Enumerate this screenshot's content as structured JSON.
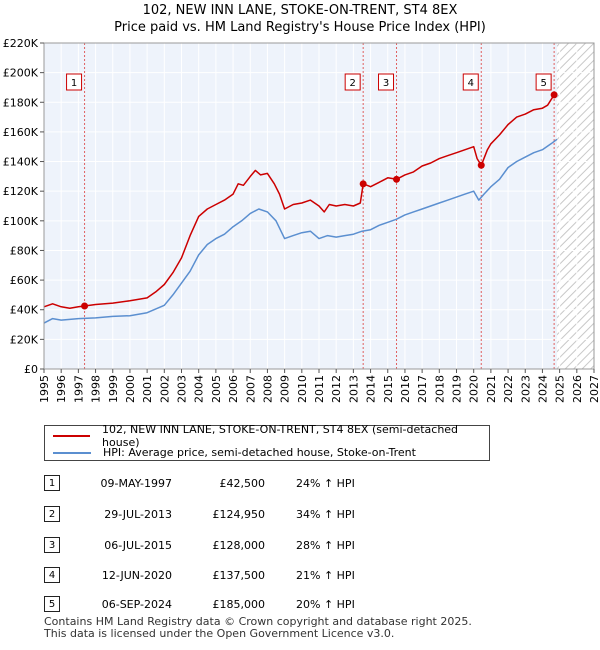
{
  "title_line1": "102, NEW INN LANE, STOKE-ON-TRENT, ST4 8EX",
  "title_line2": "Price paid vs. HM Land Registry's House Price Index (HPI)",
  "chart_data": {
    "type": "line",
    "title": "102, NEW INN LANE, STOKE-ON-TRENT, ST4 8EX — Price paid vs. HM Land Registry's House Price Index (HPI)",
    "xlim": [
      1995,
      2027
    ],
    "ylim": [
      0,
      220000
    ],
    "xticks": [
      1995,
      1996,
      1997,
      1998,
      1999,
      2000,
      2001,
      2002,
      2003,
      2004,
      2005,
      2006,
      2007,
      2008,
      2009,
      2010,
      2011,
      2012,
      2013,
      2014,
      2015,
      2016,
      2017,
      2018,
      2019,
      2020,
      2021,
      2022,
      2023,
      2024,
      2025,
      2026,
      2027
    ],
    "yticks": [
      {
        "value": 0,
        "label": "£0"
      },
      {
        "value": 20000,
        "label": "£20K"
      },
      {
        "value": 40000,
        "label": "£40K"
      },
      {
        "value": 60000,
        "label": "£60K"
      },
      {
        "value": 80000,
        "label": "£80K"
      },
      {
        "value": 100000,
        "label": "£100K"
      },
      {
        "value": 120000,
        "label": "£120K"
      },
      {
        "value": 140000,
        "label": "£140K"
      },
      {
        "value": 160000,
        "label": "£160K"
      },
      {
        "value": 180000,
        "label": "£180K"
      },
      {
        "value": 200000,
        "label": "£200K"
      },
      {
        "value": 220000,
        "label": "£220K"
      }
    ],
    "forecast_start": 2024.85,
    "series": [
      {
        "name": "102, NEW INN LANE, STOKE-ON-TRENT, ST4 8EX (semi-detached house)",
        "color": "#cc0000",
        "points": [
          [
            1995.0,
            42000
          ],
          [
            1995.5,
            44000
          ],
          [
            1996.0,
            42000
          ],
          [
            1996.5,
            41000
          ],
          [
            1997.0,
            42000
          ],
          [
            1997.36,
            42500
          ],
          [
            1998.0,
            43500
          ],
          [
            1999.0,
            44500
          ],
          [
            2000.0,
            46000
          ],
          [
            2001.0,
            48000
          ],
          [
            2001.5,
            52000
          ],
          [
            2002.0,
            57000
          ],
          [
            2002.5,
            65000
          ],
          [
            2003.0,
            75000
          ],
          [
            2003.5,
            90000
          ],
          [
            2004.0,
            103000
          ],
          [
            2004.5,
            108000
          ],
          [
            2005.0,
            111000
          ],
          [
            2005.5,
            114000
          ],
          [
            2006.0,
            118000
          ],
          [
            2006.3,
            125000
          ],
          [
            2006.6,
            124000
          ],
          [
            2007.0,
            130000
          ],
          [
            2007.3,
            134000
          ],
          [
            2007.6,
            131000
          ],
          [
            2008.0,
            132000
          ],
          [
            2008.4,
            125000
          ],
          [
            2008.7,
            118000
          ],
          [
            2009.0,
            108000
          ],
          [
            2009.5,
            111000
          ],
          [
            2010.0,
            112000
          ],
          [
            2010.5,
            114000
          ],
          [
            2011.0,
            110000
          ],
          [
            2011.3,
            106000
          ],
          [
            2011.6,
            111000
          ],
          [
            2012.0,
            110000
          ],
          [
            2012.5,
            111000
          ],
          [
            2013.0,
            110000
          ],
          [
            2013.4,
            112000
          ],
          [
            2013.57,
            124950
          ],
          [
            2014.0,
            123000
          ],
          [
            2014.5,
            126000
          ],
          [
            2015.0,
            129000
          ],
          [
            2015.51,
            128000
          ],
          [
            2016.0,
            131000
          ],
          [
            2016.5,
            133000
          ],
          [
            2017.0,
            137000
          ],
          [
            2017.5,
            139000
          ],
          [
            2018.0,
            142000
          ],
          [
            2018.5,
            144000
          ],
          [
            2019.0,
            146000
          ],
          [
            2019.5,
            148000
          ],
          [
            2020.0,
            150000
          ],
          [
            2020.2,
            142000
          ],
          [
            2020.44,
            137500
          ],
          [
            2020.8,
            148000
          ],
          [
            2021.0,
            152000
          ],
          [
            2021.5,
            158000
          ],
          [
            2022.0,
            165000
          ],
          [
            2022.5,
            170000
          ],
          [
            2023.0,
            172000
          ],
          [
            2023.5,
            175000
          ],
          [
            2024.0,
            176000
          ],
          [
            2024.3,
            178000
          ],
          [
            2024.68,
            185000
          ],
          [
            2024.85,
            186000
          ]
        ]
      },
      {
        "name": "HPI: Average price, semi-detached house, Stoke-on-Trent",
        "color": "#5b8fd0",
        "points": [
          [
            1995.0,
            31000
          ],
          [
            1995.5,
            34000
          ],
          [
            1996.0,
            33000
          ],
          [
            1997.0,
            34000
          ],
          [
            1998.0,
            34500
          ],
          [
            1999.0,
            35500
          ],
          [
            2000.0,
            36000
          ],
          [
            2001.0,
            38000
          ],
          [
            2002.0,
            43000
          ],
          [
            2002.5,
            50000
          ],
          [
            2003.0,
            58000
          ],
          [
            2003.5,
            66000
          ],
          [
            2004.0,
            77000
          ],
          [
            2004.5,
            84000
          ],
          [
            2005.0,
            88000
          ],
          [
            2005.5,
            91000
          ],
          [
            2006.0,
            96000
          ],
          [
            2006.5,
            100000
          ],
          [
            2007.0,
            105000
          ],
          [
            2007.5,
            108000
          ],
          [
            2008.0,
            106000
          ],
          [
            2008.5,
            100000
          ],
          [
            2009.0,
            88000
          ],
          [
            2009.5,
            90000
          ],
          [
            2010.0,
            92000
          ],
          [
            2010.5,
            93000
          ],
          [
            2011.0,
            88000
          ],
          [
            2011.5,
            90000
          ],
          [
            2012.0,
            89000
          ],
          [
            2012.5,
            90000
          ],
          [
            2013.0,
            91000
          ],
          [
            2013.5,
            93000
          ],
          [
            2014.0,
            94000
          ],
          [
            2014.5,
            97000
          ],
          [
            2015.0,
            99000
          ],
          [
            2015.5,
            101000
          ],
          [
            2016.0,
            104000
          ],
          [
            2016.5,
            106000
          ],
          [
            2017.0,
            108000
          ],
          [
            2017.5,
            110000
          ],
          [
            2018.0,
            112000
          ],
          [
            2018.5,
            114000
          ],
          [
            2019.0,
            116000
          ],
          [
            2019.5,
            118000
          ],
          [
            2020.0,
            120000
          ],
          [
            2020.3,
            114000
          ],
          [
            2020.6,
            118000
          ],
          [
            2021.0,
            123000
          ],
          [
            2021.5,
            128000
          ],
          [
            2022.0,
            136000
          ],
          [
            2022.5,
            140000
          ],
          [
            2023.0,
            143000
          ],
          [
            2023.5,
            146000
          ],
          [
            2024.0,
            148000
          ],
          [
            2024.5,
            152000
          ],
          [
            2024.85,
            155000
          ]
        ]
      }
    ],
    "sales": [
      {
        "id": "1",
        "x": 1997.36,
        "y": 42500
      },
      {
        "id": "2",
        "x": 2013.57,
        "y": 124950
      },
      {
        "id": "3",
        "x": 2015.51,
        "y": 128000
      },
      {
        "id": "4",
        "x": 2020.44,
        "y": 137500
      },
      {
        "id": "5",
        "x": 2024.68,
        "y": 185000
      }
    ]
  },
  "legend": {
    "property": "102, NEW INN LANE, STOKE-ON-TRENT, ST4 8EX (semi-detached house)",
    "hpi": "HPI: Average price, semi-detached house, Stoke-on-Trent"
  },
  "transactions": [
    {
      "num": "1",
      "date": "09-MAY-1997",
      "price": "£42,500",
      "hpi": "24% ↑ HPI"
    },
    {
      "num": "2",
      "date": "29-JUL-2013",
      "price": "£124,950",
      "hpi": "34% ↑ HPI"
    },
    {
      "num": "3",
      "date": "06-JUL-2015",
      "price": "£128,000",
      "hpi": "28% ↑ HPI"
    },
    {
      "num": "4",
      "date": "12-JUN-2020",
      "price": "£137,500",
      "hpi": "21% ↑ HPI"
    },
    {
      "num": "5",
      "date": "06-SEP-2024",
      "price": "£185,000",
      "hpi": "20% ↑ HPI"
    }
  ],
  "footer": {
    "line1": "Contains HM Land Registry data © Crown copyright and database right 2025.",
    "line2": "This data is licensed under the Open Government Licence v3.0."
  }
}
